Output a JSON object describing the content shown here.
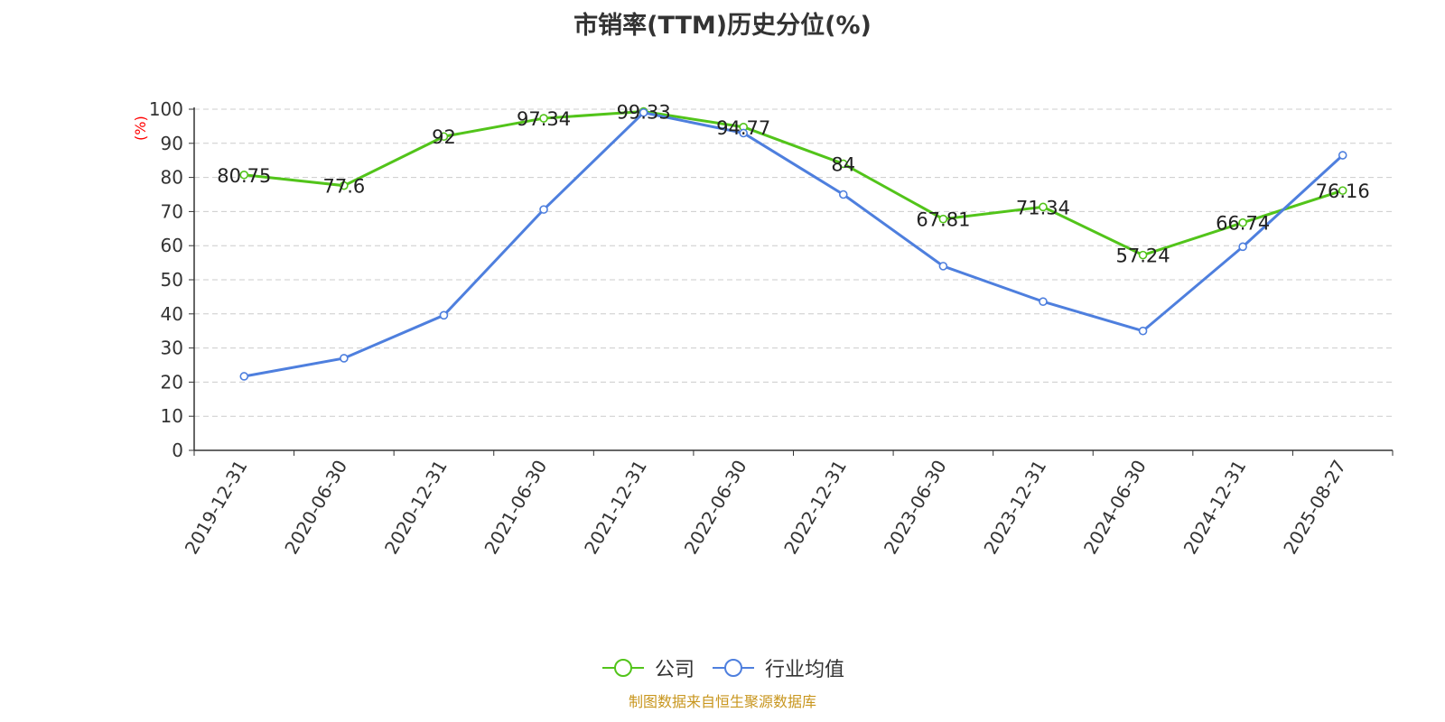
{
  "chart_data": {
    "type": "line",
    "title": "市销率(TTM)历史分位(%)",
    "ylabel": "(%)",
    "categories": [
      "2019-12-31",
      "2020-06-30",
      "2020-12-31",
      "2021-06-30",
      "2021-12-31",
      "2022-06-30",
      "2022-12-31",
      "2023-06-30",
      "2023-12-31",
      "2024-06-30",
      "2024-12-31",
      "2025-08-27"
    ],
    "yticks": [
      "0",
      "10",
      "20",
      "30",
      "40",
      "50",
      "60",
      "70",
      "80",
      "90",
      "100"
    ],
    "ylim": [
      0,
      100
    ],
    "grid": true,
    "legend_position": "bottom",
    "series": [
      {
        "name": "公司",
        "color": "#52c41a",
        "labels": true,
        "values": [
          80.75,
          77.6,
          92,
          97.34,
          99.33,
          94.77,
          84,
          67.81,
          71.34,
          57.24,
          66.74,
          76.16
        ]
      },
      {
        "name": "行业均值",
        "color": "#4e7fde",
        "labels": false,
        "values": [
          21.7,
          27.0,
          39.6,
          70.6,
          99.0,
          93.0,
          75.0,
          54.0,
          43.6,
          35.0,
          59.7,
          86.5
        ]
      }
    ]
  },
  "source": "制图数据来自恒生聚源数据库"
}
